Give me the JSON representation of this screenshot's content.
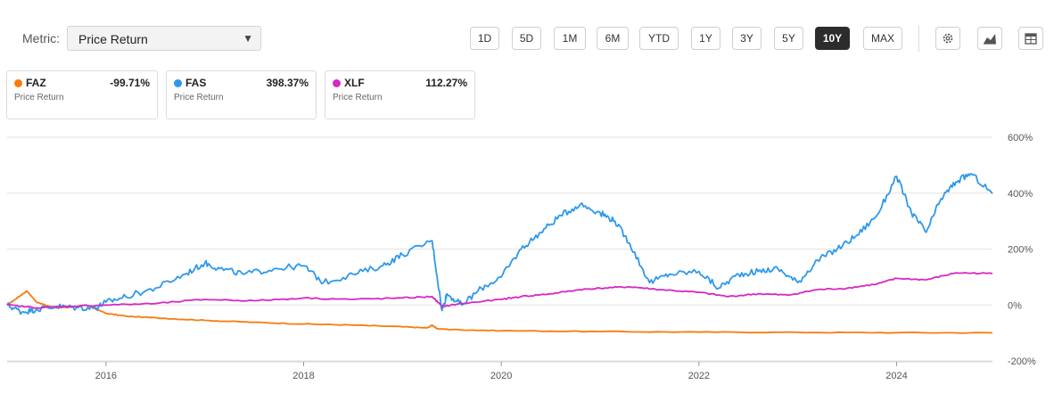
{
  "metric": {
    "label": "Metric:",
    "value": "Price Return"
  },
  "periods": [
    "1D",
    "5D",
    "1M",
    "6M",
    "YTD",
    "1Y",
    "3Y",
    "5Y",
    "10Y",
    "MAX"
  ],
  "active_period": "10Y",
  "tools": [
    "gear-icon",
    "area-chart-icon",
    "table-icon"
  ],
  "colors": {
    "FAZ": "#f97b0f",
    "FAS": "#2e98eb",
    "XLF": "#d628c4",
    "grid": "#e3e3e3"
  },
  "legend": [
    {
      "symbol": "FAZ",
      "value": "-99.71%",
      "metric": "Price Return",
      "color": "#f97b0f"
    },
    {
      "symbol": "FAS",
      "value": "398.37%",
      "metric": "Price Return",
      "color": "#2e98eb"
    },
    {
      "symbol": "XLF",
      "value": "112.27%",
      "metric": "Price Return",
      "color": "#d628c4"
    }
  ],
  "chart_data": {
    "type": "line",
    "xlim": [
      2015.0,
      2024.97
    ],
    "ylim": [
      -200,
      600
    ],
    "y_ticks": [
      600,
      400,
      200,
      0,
      -200
    ],
    "y_tick_labels": [
      "600%",
      "400%",
      "200%",
      "0%",
      "-200%"
    ],
    "x_ticks": [
      2016,
      2018,
      2020,
      2022,
      2024
    ],
    "x_tick_labels": [
      "2016",
      "2018",
      "2020",
      "2022",
      "2024"
    ],
    "grid": true,
    "series": [
      {
        "name": "FAZ",
        "x": [
          2015.0,
          2015.1,
          2015.2,
          2015.3,
          2015.45,
          2015.6,
          2015.8,
          2016.0,
          2016.2,
          2016.6,
          2017.0,
          2017.5,
          2018.0,
          2018.5,
          2019.0,
          2019.25,
          2019.3,
          2019.35,
          2019.5,
          2020.0,
          2021.0,
          2022.0,
          2023.0,
          2024.0,
          2024.97
        ],
        "y": [
          0,
          25,
          50,
          10,
          -8,
          -10,
          0,
          -30,
          -40,
          -48,
          -55,
          -62,
          -68,
          -72,
          -78,
          -82,
          -72,
          -85,
          -88,
          -92,
          -95,
          -97,
          -98,
          -99,
          -99.71
        ]
      },
      {
        "name": "FAS",
        "x": [
          2015.0,
          2015.15,
          2015.3,
          2015.5,
          2015.7,
          2015.9,
          2016.0,
          2016.2,
          2016.5,
          2016.8,
          2017.0,
          2017.15,
          2017.4,
          2017.7,
          2018.0,
          2018.2,
          2018.5,
          2018.8,
          2019.0,
          2019.3,
          2019.4,
          2019.45,
          2019.6,
          2019.8,
          2020.0,
          2020.2,
          2020.4,
          2020.6,
          2020.8,
          2021.0,
          2021.15,
          2021.3,
          2021.5,
          2021.7,
          2022.0,
          2022.2,
          2022.4,
          2022.6,
          2022.8,
          2023.0,
          2023.2,
          2023.4,
          2023.6,
          2023.8,
          2024.0,
          2024.15,
          2024.3,
          2024.45,
          2024.6,
          2024.75,
          2024.97
        ],
        "y": [
          0,
          -25,
          -15,
          -5,
          -10,
          -10,
          10,
          30,
          60,
          110,
          150,
          130,
          110,
          130,
          140,
          80,
          110,
          140,
          180,
          230,
          -20,
          40,
          0,
          60,
          100,
          200,
          260,
          320,
          360,
          330,
          300,
          220,
          80,
          110,
          120,
          60,
          110,
          120,
          130,
          80,
          160,
          200,
          250,
          320,
          460,
          330,
          260,
          380,
          440,
          470,
          398.37
        ]
      },
      {
        "name": "XLF",
        "x": [
          2015.0,
          2015.3,
          2015.6,
          2016.0,
          2016.5,
          2017.0,
          2017.5,
          2018.0,
          2018.5,
          2019.0,
          2019.3,
          2019.4,
          2019.6,
          2020.0,
          2020.2,
          2020.5,
          2020.8,
          2021.0,
          2021.3,
          2021.6,
          2022.0,
          2022.3,
          2022.6,
          2022.9,
          2023.2,
          2023.5,
          2023.8,
          2024.0,
          2024.3,
          2024.6,
          2024.97
        ],
        "y": [
          0,
          -10,
          -5,
          0,
          5,
          20,
          15,
          25,
          20,
          25,
          30,
          -5,
          5,
          20,
          30,
          40,
          55,
          60,
          65,
          55,
          45,
          30,
          40,
          35,
          55,
          60,
          75,
          95,
          90,
          115,
          112.27
        ]
      }
    ]
  }
}
